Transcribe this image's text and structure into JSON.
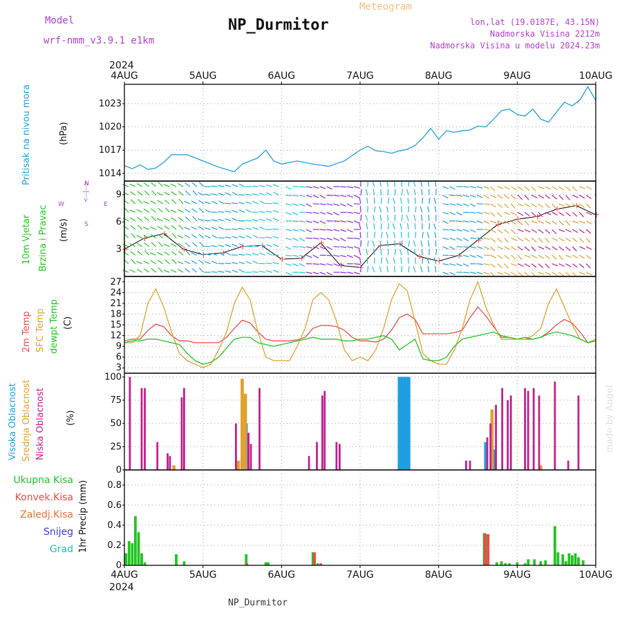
{
  "header": {
    "model_label": "Model",
    "model_name": "wrf-nmm_v3.9.1  e1km",
    "title": "NP_Durmitor",
    "subtitle": "Meteogram",
    "lonlat": "lon,lat (19.0187E, 43.15N)",
    "altitude": "Nadmorska Visina 2212m",
    "model_altitude": "Nadmorska Visina u modelu 2024.23m",
    "footer_station": "NP_Durmitor",
    "watermark": "made by Angel"
  },
  "colors": {
    "pressure": "#1e9fe0",
    "temp2m": "#f04a4a",
    "sfc": "#e0a030",
    "dewpt": "#22c422",
    "high_cloud": "#1e9fe0",
    "mid_cloud": "#e0a030",
    "low_cloud": "#c0208c",
    "total_precip": "#22c422",
    "conv_precip": "#f04a4a",
    "frozen": "#f07030",
    "snow": "#3a3ad8",
    "hail": "#20c0c0",
    "header_purple": "#b040d0",
    "header_orange": "#f0c080"
  },
  "chart_data": [
    {
      "id": "pressure",
      "type": "line",
      "ylabel_main": "Pritisak na nivou mora",
      "ylabel_unit": "(hPa)",
      "x_labels": [
        "4AUG",
        "5AUG",
        "6AUG",
        "7AUG",
        "8AUG",
        "9AUG",
        "10AUG"
      ],
      "x_year": "2024",
      "ylim": [
        1013,
        1025.5
      ],
      "yticks": [
        1014,
        1017,
        1020,
        1023
      ],
      "grid": true,
      "series": [
        {
          "color_key": "pressure",
          "x": [
            0,
            0.1,
            0.2,
            0.3,
            0.4,
            0.5,
            0.6,
            0.8,
            1.0,
            1.2,
            1.4,
            1.5,
            1.6,
            1.7,
            1.8,
            1.9,
            2.0,
            2.2,
            2.4,
            2.6,
            2.8,
            3.0,
            3.1,
            3.2,
            3.3,
            3.4,
            3.5,
            3.6,
            3.7,
            3.8,
            3.9,
            4.0,
            4.1,
            4.2,
            4.3,
            4.4,
            4.5,
            4.6,
            4.7,
            4.8,
            4.9,
            5.0,
            5.1,
            5.2,
            5.3,
            5.4,
            5.5,
            5.6,
            5.7,
            5.8,
            5.9,
            6.0
          ],
          "values": [
            1015.0,
            1014.6,
            1015.1,
            1014.5,
            1014.7,
            1015.4,
            1016.4,
            1016.4,
            1015.6,
            1014.8,
            1014.2,
            1015.2,
            1015.6,
            1016.0,
            1017.0,
            1015.6,
            1015.2,
            1015.6,
            1015.2,
            1014.9,
            1015.6,
            1017.0,
            1017.5,
            1016.9,
            1016.8,
            1016.6,
            1016.9,
            1017.1,
            1017.6,
            1018.6,
            1019.8,
            1018.4,
            1019.5,
            1019.3,
            1019.5,
            1019.6,
            1020.1,
            1020.0,
            1021.0,
            1022.1,
            1022.3,
            1021.6,
            1021.4,
            1022.3,
            1021.0,
            1020.6,
            1021.9,
            1023.2,
            1022.7,
            1023.5,
            1025.2,
            1023.4
          ]
        }
      ]
    },
    {
      "id": "wind",
      "type": "line",
      "ylabel_main": "10m Vjetar",
      "ylabel_main2": "Brzina i Pravac",
      "ylabel_unit": "(m/s)",
      "compass": [
        "N",
        "E",
        "S",
        "W",
        "<--|-->"
      ],
      "ylim": [
        0,
        10.5
      ],
      "yticks": [
        3,
        6,
        9
      ],
      "grid": true,
      "series": [
        {
          "color_key": "wind_speed",
          "x": [
            0,
            0.25,
            0.5,
            0.75,
            1.0,
            1.25,
            1.5,
            1.75,
            2.0,
            2.25,
            2.5,
            2.75,
            3.0,
            3.25,
            3.5,
            3.75,
            4.0,
            4.25,
            4.5,
            4.75,
            5.0,
            5.25,
            5.5,
            5.75,
            6.0
          ],
          "values": [
            3.0,
            4.2,
            4.7,
            3.0,
            2.4,
            2.6,
            3.3,
            3.4,
            1.9,
            2.0,
            3.7,
            1.2,
            1.0,
            3.4,
            3.6,
            2.2,
            1.7,
            2.3,
            4.0,
            5.7,
            6.3,
            6.6,
            7.4,
            7.8,
            6.8
          ]
        }
      ]
    },
    {
      "id": "temperature",
      "type": "line",
      "ylabel_main": "2m Temp",
      "ylabel_main2": "SFC Temp",
      "ylabel_main3": "dewpt Temp",
      "ylabel_unit": "(C)",
      "ylim": [
        1.5,
        28.5
      ],
      "yticks": [
        3,
        6,
        9,
        12,
        15,
        18,
        21,
        24,
        27
      ],
      "grid": true,
      "series": [
        {
          "name": "2m Temp",
          "color_key": "temp2m",
          "x": [
            0,
            0.1,
            0.2,
            0.3,
            0.4,
            0.5,
            0.6,
            0.7,
            0.8,
            0.9,
            1.0,
            1.1,
            1.2,
            1.3,
            1.4,
            1.5,
            1.6,
            1.7,
            1.8,
            1.9,
            2.0,
            2.1,
            2.2,
            2.3,
            2.4,
            2.5,
            2.6,
            2.7,
            2.8,
            2.9,
            3.0,
            3.1,
            3.2,
            3.3,
            3.4,
            3.5,
            3.6,
            3.7,
            3.8,
            3.9,
            4.0,
            4.1,
            4.2,
            4.3,
            4.4,
            4.5,
            4.6,
            4.7,
            4.8,
            4.9,
            5.0,
            5.1,
            5.2,
            5.3,
            5.4,
            5.5,
            5.6,
            5.7,
            5.8,
            5.9,
            6.0
          ],
          "values": [
            10.5,
            11.0,
            11.0,
            13.5,
            15.2,
            14.5,
            12.0,
            10.5,
            10.5,
            10.0,
            10.0,
            10.0,
            10.0,
            11.5,
            14.0,
            16.3,
            15.5,
            13.0,
            11.0,
            10.5,
            10.5,
            10.5,
            10.8,
            11.5,
            14.0,
            14.8,
            14.8,
            14.5,
            13.5,
            11.5,
            10.5,
            10.5,
            10.2,
            11.0,
            13.5,
            17.0,
            18.0,
            16.5,
            12.5,
            12.5,
            12.5,
            12.5,
            12.8,
            13.5,
            17.0,
            20.0,
            17.5,
            14.5,
            11.5,
            11.5,
            11.0,
            11.0,
            11.0,
            11.5,
            13.0,
            15.0,
            16.5,
            15.5,
            13.0,
            10.0,
            10.5
          ]
        },
        {
          "name": "SFC Temp",
          "color_key": "sfc",
          "x": [
            0,
            0.1,
            0.2,
            0.3,
            0.4,
            0.5,
            0.6,
            0.7,
            0.8,
            0.9,
            1.0,
            1.1,
            1.2,
            1.3,
            1.4,
            1.5,
            1.6,
            1.7,
            1.8,
            1.9,
            2.0,
            2.1,
            2.2,
            2.3,
            2.4,
            2.5,
            2.6,
            2.7,
            2.8,
            2.9,
            3.0,
            3.1,
            3.2,
            3.3,
            3.4,
            3.5,
            3.6,
            3.7,
            3.8,
            3.9,
            4.0,
            4.1,
            4.2,
            4.3,
            4.4,
            4.5,
            4.6,
            4.7,
            4.8,
            4.9,
            5.0,
            5.1,
            5.2,
            5.3,
            5.4,
            5.5,
            5.6,
            5.7,
            5.8,
            5.9,
            6.0
          ],
          "values": [
            10.0,
            10.0,
            12.0,
            21.0,
            25.0,
            20.0,
            13.0,
            7.0,
            5.0,
            4.0,
            3.0,
            4.0,
            8.0,
            13.0,
            21.0,
            25.5,
            22.0,
            13.0,
            6.0,
            5.0,
            5.0,
            5.0,
            9.0,
            14.0,
            22.0,
            24.0,
            22.0,
            16.0,
            8.0,
            5.0,
            6.0,
            5.0,
            8.0,
            14.0,
            22.0,
            26.5,
            24.5,
            16.0,
            7.0,
            5.0,
            4.0,
            4.0,
            8.0,
            14.0,
            22.0,
            27.0,
            20.0,
            15.0,
            11.0,
            11.0,
            11.0,
            11.0,
            12.0,
            14.0,
            21.0,
            25.0,
            20.0,
            15.0,
            11.0,
            10.0,
            11.0
          ]
        },
        {
          "name": "dewpt Temp",
          "color_key": "dewpt",
          "x": [
            0,
            0.1,
            0.2,
            0.3,
            0.4,
            0.5,
            0.6,
            0.7,
            0.8,
            0.9,
            1.0,
            1.1,
            1.2,
            1.3,
            1.4,
            1.5,
            1.6,
            1.7,
            1.8,
            1.9,
            2.0,
            2.1,
            2.2,
            2.3,
            2.4,
            2.5,
            2.6,
            2.7,
            2.8,
            2.9,
            3.0,
            3.1,
            3.2,
            3.3,
            3.4,
            3.5,
            3.6,
            3.7,
            3.8,
            3.9,
            4.0,
            4.1,
            4.2,
            4.3,
            4.4,
            4.5,
            4.6,
            4.7,
            4.8,
            4.9,
            5.0,
            5.1,
            5.2,
            5.3,
            5.4,
            5.5,
            5.6,
            5.7,
            5.8,
            5.9,
            6.0
          ],
          "values": [
            10.0,
            10.5,
            10.5,
            11.0,
            11.0,
            10.5,
            10.0,
            9.5,
            7.0,
            5.0,
            4.0,
            4.5,
            6.0,
            8.5,
            11.0,
            11.5,
            11.5,
            10.0,
            9.5,
            9.0,
            9.5,
            10.0,
            10.5,
            11.0,
            11.5,
            11.0,
            11.0,
            11.0,
            10.5,
            10.5,
            11.0,
            11.0,
            11.5,
            12.0,
            11.0,
            8.0,
            9.5,
            11.0,
            5.5,
            5.0,
            5.0,
            6.0,
            9.0,
            11.0,
            11.5,
            12.0,
            12.5,
            13.0,
            12.0,
            11.5,
            11.0,
            11.5,
            11.0,
            11.5,
            12.5,
            13.0,
            12.5,
            12.0,
            11.0,
            10.0,
            10.5
          ]
        }
      ]
    },
    {
      "id": "clouds",
      "type": "bar",
      "ylabel_main": "Visoka Oblacnost",
      "ylabel_main2": "Srednja Oblacnost",
      "ylabel_main3": "Niska  Oblacnost",
      "ylabel_unit": "(%)",
      "ylim": [
        0,
        104
      ],
      "yticks": [
        0,
        25,
        50,
        75,
        100
      ],
      "grid": true,
      "series": [
        {
          "name": "Visoka Oblacnost",
          "color_key": "high_cloud",
          "width_hours": 1.0,
          "x": [
            1.45,
            1.5,
            1.55,
            3.5,
            3.52,
            3.54,
            3.56,
            3.58,
            3.6,
            3.62,
            4.6,
            4.7
          ],
          "values": [
            10,
            12,
            50,
            100,
            100,
            100,
            100,
            100,
            100,
            100,
            30,
            22
          ]
        },
        {
          "name": "Srednja Oblacnost",
          "color_key": "mid_cloud",
          "width_hours": 1.0,
          "x": [
            0.63,
            1.45,
            1.5,
            1.54,
            5.3,
            4.68
          ],
          "values": [
            5,
            10,
            98,
            82,
            5,
            65
          ]
        },
        {
          "name": "Niska Oblacnost",
          "color_key": "low_cloud",
          "width_hours": 0.6,
          "x": [
            0.07,
            0.22,
            0.26,
            0.42,
            0.55,
            0.58,
            0.73,
            0.76,
            1.42,
            1.58,
            1.61,
            1.72,
            2.35,
            2.45,
            2.52,
            2.55,
            2.7,
            2.74,
            4.35,
            4.4,
            4.62,
            4.66,
            4.73,
            4.81,
            4.88,
            4.92,
            5.1,
            5.14,
            5.21,
            5.28,
            5.48,
            5.65,
            5.78
          ],
          "values": [
            100,
            88,
            88,
            30,
            18,
            15,
            78,
            88,
            50,
            40,
            28,
            88,
            15,
            30,
            80,
            85,
            30,
            28,
            10,
            10,
            35,
            50,
            70,
            88,
            75,
            80,
            88,
            85,
            88,
            80,
            95,
            10,
            80
          ]
        }
      ]
    },
    {
      "id": "precipitation",
      "type": "bar",
      "ylabel_main": "1hr Precip (mm)",
      "legend": [
        "Ukupna  Kisa",
        "Konvek.Kisa",
        "Zaledj.Kisa",
        "Snijeg",
        "Grad"
      ],
      "ylim": [
        0,
        0.95
      ],
      "yticks": [
        0,
        0.2,
        0.4,
        0.6,
        0.8
      ],
      "yticklabels": [
        "0",
        "0.2",
        "0.4",
        "0.6",
        "0.8"
      ],
      "grid": true,
      "x_labels": [
        "4AUG",
        "5AUG",
        "6AUG",
        "7AUG",
        "8AUG",
        "9AUG",
        "10AUG"
      ],
      "x_year": "2024",
      "series": [
        {
          "name": "Ukupna  Kisa",
          "color_key": "total_precip",
          "x": [
            0.02,
            0.06,
            0.1,
            0.14,
            0.18,
            0.22,
            0.26,
            0.66,
            0.76,
            1.55,
            1.8,
            1.83,
            2.4,
            2.46,
            4.58,
            4.62,
            4.74,
            4.8,
            4.85,
            4.9,
            5.0,
            5.1,
            5.14,
            5.22,
            5.3,
            5.36,
            5.48,
            5.52,
            5.58,
            5.62,
            5.66,
            5.7,
            5.74,
            5.78,
            5.84
          ],
          "values": [
            0.12,
            0.24,
            0.22,
            0.49,
            0.33,
            0.12,
            0.03,
            0.11,
            0.04,
            0.11,
            0.03,
            0.03,
            0.13,
            0.02,
            0.32,
            0.31,
            0.03,
            0.04,
            0.02,
            0.02,
            0.03,
            0.02,
            0.06,
            0.06,
            0.04,
            0.05,
            0.39,
            0.13,
            0.11,
            0.04,
            0.12,
            0.1,
            0.12,
            0.08,
            0.05
          ]
        },
        {
          "name": "Konvek.Kisa",
          "color_key": "conv_precip",
          "x": [
            1.56,
            2.42,
            2.5,
            4.59,
            4.63
          ],
          "values": [
            0.02,
            0.13,
            0.02,
            0.32,
            0.31
          ]
        }
      ]
    }
  ]
}
